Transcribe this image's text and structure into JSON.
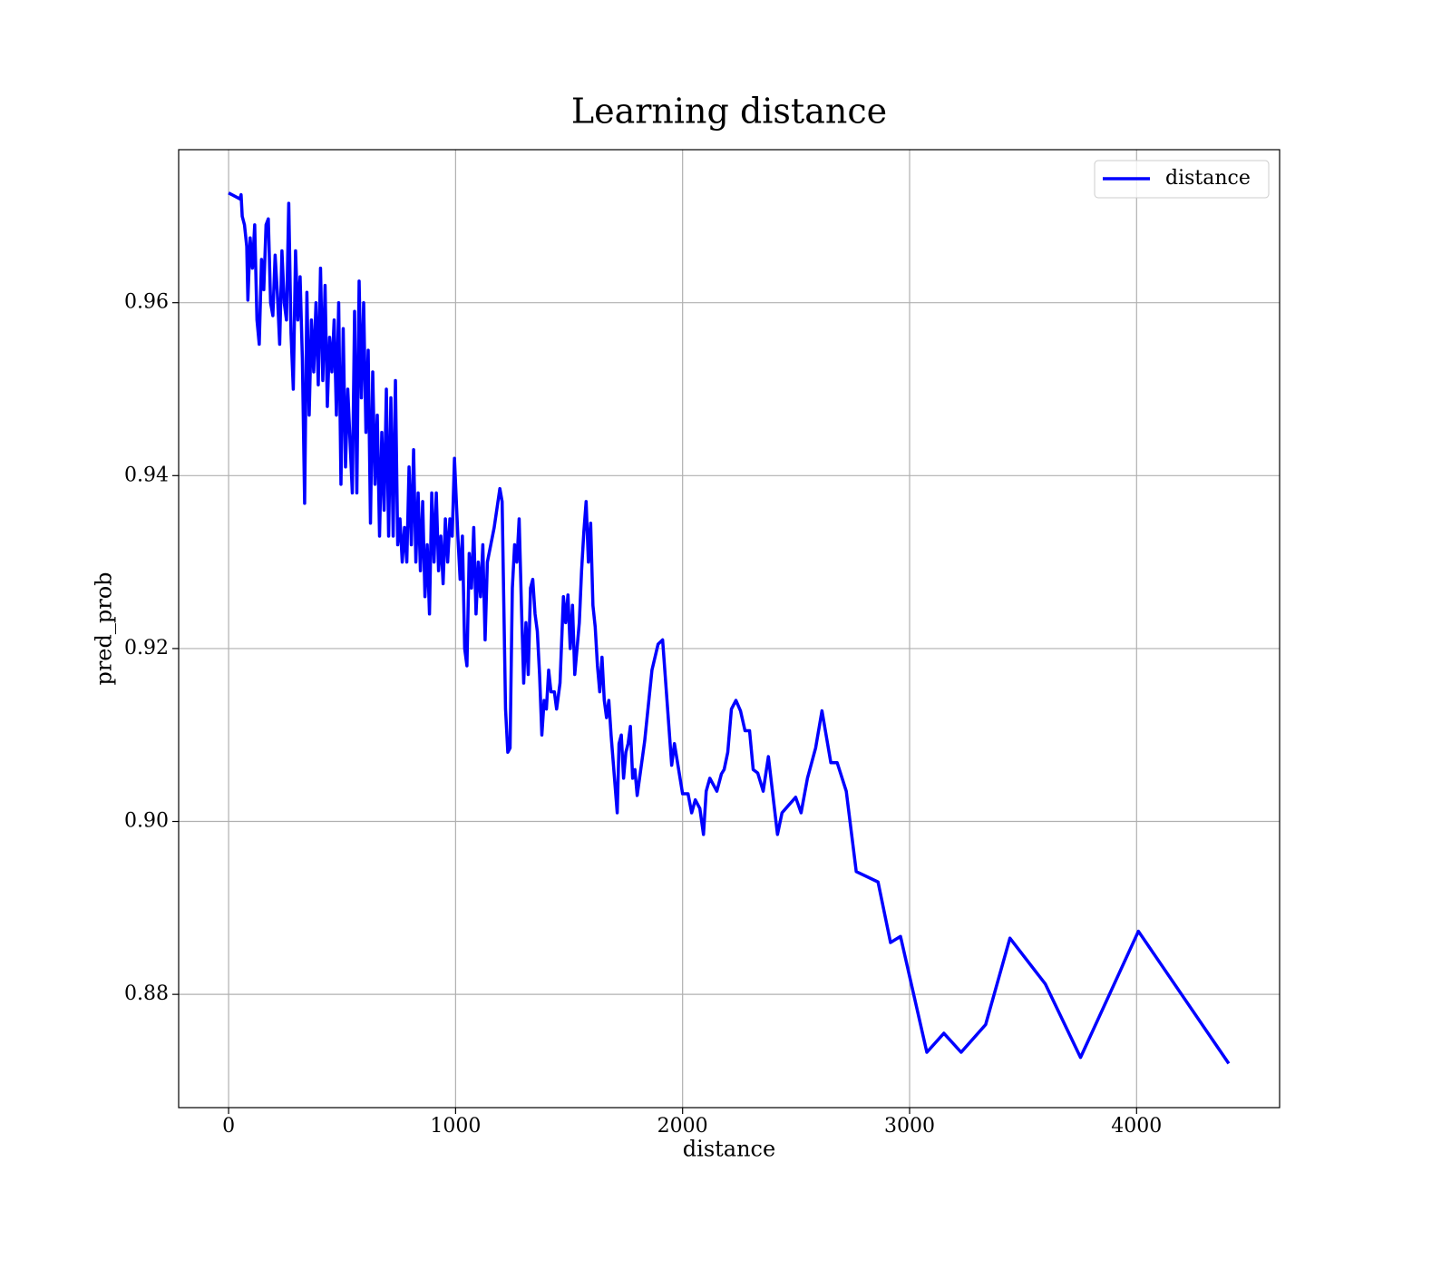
{
  "chart_data": {
    "type": "line",
    "title": "Learning distance",
    "xlabel": "distance",
    "ylabel": "pred_prob",
    "x": [
      0,
      50,
      55,
      60,
      70,
      80,
      85,
      95,
      105,
      115,
      125,
      135,
      145,
      155,
      165,
      175,
      185,
      195,
      205,
      215,
      225,
      235,
      245,
      255,
      265,
      275,
      285,
      295,
      305,
      315,
      325,
      335,
      345,
      355,
      365,
      375,
      385,
      395,
      405,
      415,
      425,
      435,
      445,
      455,
      465,
      475,
      485,
      495,
      505,
      515,
      525,
      535,
      545,
      555,
      565,
      575,
      585,
      595,
      605,
      615,
      625,
      635,
      645,
      655,
      665,
      675,
      685,
      695,
      705,
      715,
      725,
      735,
      745,
      755,
      765,
      775,
      785,
      795,
      805,
      815,
      825,
      835,
      845,
      855,
      865,
      875,
      885,
      895,
      905,
      915,
      925,
      935,
      945,
      955,
      965,
      975,
      985,
      995,
      1010,
      1020,
      1030,
      1040,
      1050,
      1060,
      1070,
      1080,
      1090,
      1100,
      1110,
      1120,
      1130,
      1140,
      1170,
      1195,
      1205,
      1220,
      1230,
      1240,
      1250,
      1260,
      1270,
      1280,
      1290,
      1300,
      1310,
      1320,
      1330,
      1340,
      1350,
      1360,
      1370,
      1380,
      1390,
      1400,
      1410,
      1420,
      1435,
      1445,
      1460,
      1475,
      1485,
      1495,
      1505,
      1515,
      1525,
      1535,
      1545,
      1555,
      1565,
      1575,
      1585,
      1595,
      1605,
      1615,
      1625,
      1635,
      1645,
      1655,
      1665,
      1675,
      1685,
      1712,
      1720,
      1730,
      1740,
      1750,
      1760,
      1770,
      1780,
      1790,
      1800,
      1833,
      1865,
      1892,
      1912,
      1952,
      1964,
      2000,
      2024,
      2040,
      2056,
      2076,
      2092,
      2104,
      2120,
      2151,
      2171,
      2183,
      2199,
      2215,
      2235,
      2255,
      2275,
      2295,
      2311,
      2331,
      2355,
      2378,
      2418,
      2438,
      2498,
      2522,
      2550,
      2586,
      2614,
      2653,
      2681,
      2721,
      2765,
      2861,
      2916,
      2960,
      3076,
      3151,
      3227,
      3335,
      3442,
      3598,
      3753,
      4008,
      4406
    ],
    "series": [
      {
        "name": "distance",
        "color": "#0000ff",
        "values": [
          0.9727,
          0.972,
          0.9725,
          0.97,
          0.969,
          0.9665,
          0.9603,
          0.9675,
          0.964,
          0.969,
          0.958,
          0.9552,
          0.965,
          0.9615,
          0.969,
          0.9697,
          0.96,
          0.9585,
          0.9655,
          0.961,
          0.9552,
          0.966,
          0.96,
          0.958,
          0.9715,
          0.9565,
          0.95,
          0.966,
          0.958,
          0.963,
          0.9535,
          0.9368,
          0.9612,
          0.947,
          0.958,
          0.952,
          0.96,
          0.9505,
          0.964,
          0.951,
          0.962,
          0.948,
          0.956,
          0.952,
          0.958,
          0.947,
          0.96,
          0.939,
          0.957,
          0.941,
          0.95,
          0.944,
          0.938,
          0.959,
          0.938,
          0.9625,
          0.949,
          0.96,
          0.945,
          0.9545,
          0.9345,
          0.952,
          0.939,
          0.947,
          0.933,
          0.945,
          0.936,
          0.95,
          0.933,
          0.949,
          0.933,
          0.951,
          0.932,
          0.935,
          0.93,
          0.934,
          0.93,
          0.941,
          0.932,
          0.943,
          0.93,
          0.938,
          0.929,
          0.937,
          0.926,
          0.932,
          0.924,
          0.938,
          0.93,
          0.938,
          0.929,
          0.933,
          0.9275,
          0.935,
          0.93,
          0.935,
          0.933,
          0.942,
          0.933,
          0.928,
          0.933,
          0.92,
          0.918,
          0.931,
          0.927,
          0.934,
          0.924,
          0.93,
          0.926,
          0.932,
          0.921,
          0.93,
          0.934,
          0.9385,
          0.937,
          0.913,
          0.908,
          0.9085,
          0.927,
          0.932,
          0.93,
          0.935,
          0.925,
          0.916,
          0.923,
          0.917,
          0.927,
          0.928,
          0.924,
          0.922,
          0.917,
          0.91,
          0.914,
          0.913,
          0.9175,
          0.915,
          0.915,
          0.913,
          0.916,
          0.926,
          0.923,
          0.9262,
          0.92,
          0.925,
          0.917,
          0.92,
          0.923,
          0.929,
          0.9335,
          0.937,
          0.93,
          0.9345,
          0.925,
          0.9225,
          0.918,
          0.915,
          0.919,
          0.914,
          0.912,
          0.914,
          0.91,
          0.901,
          0.909,
          0.91,
          0.905,
          0.908,
          0.909,
          0.911,
          0.905,
          0.906,
          0.903,
          0.9093,
          0.9175,
          0.9205,
          0.921,
          0.9065,
          0.909,
          0.9032,
          0.9032,
          0.901,
          0.9025,
          0.9015,
          0.8985,
          0.9035,
          0.905,
          0.9035,
          0.9055,
          0.906,
          0.908,
          0.913,
          0.914,
          0.9128,
          0.9105,
          0.9105,
          0.906,
          0.9056,
          0.9035,
          0.9075,
          0.8985,
          0.901,
          0.9028,
          0.901,
          0.905,
          0.9085,
          0.9128,
          0.9068,
          0.9068,
          0.9035,
          0.8942,
          0.893,
          0.886,
          0.8867,
          0.8733,
          0.8755,
          0.8733,
          0.8765,
          0.8865,
          0.8812,
          0.8727,
          0.8873,
          0.872
        ]
      }
    ],
    "xlim": [
      -220,
      4630
    ],
    "xticks": [
      0,
      1000,
      2000,
      3000,
      4000
    ],
    "ylim": [
      0.8669,
      0.9777
    ],
    "yticks": [
      0.88,
      {
        "value": 0.9,
        "label": "0.90"
      },
      0.92,
      0.94,
      0.96
    ],
    "grid": true,
    "legend": "upper right"
  }
}
